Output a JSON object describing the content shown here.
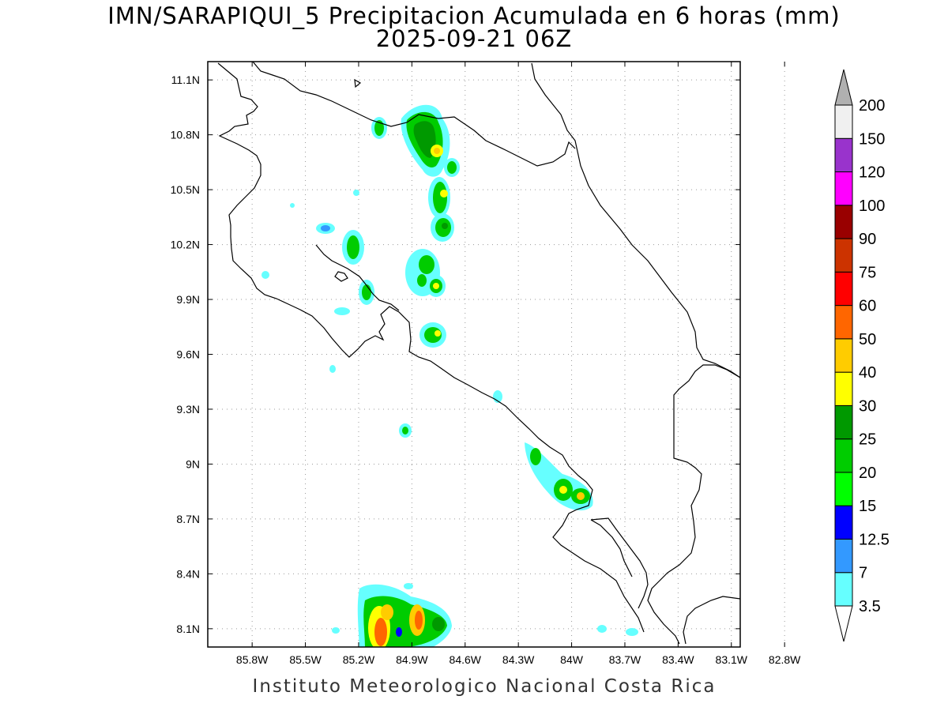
{
  "title": {
    "line1": "IMN/SARAPIQUI_5 Precipitacion Acumulada en 6 horas (mm)",
    "line2": "2025-09-21 06Z"
  },
  "footer": "Instituto Meteorologico Nacional Costa Rica",
  "map": {
    "lon_range": [
      -86.05,
      -83.05
    ],
    "lat_range": [
      8.0,
      11.2
    ],
    "x_ticks": [
      {
        "value": -85.8,
        "label": "85.8W"
      },
      {
        "value": -85.5,
        "label": "85.5W"
      },
      {
        "value": -85.2,
        "label": "85.2W"
      },
      {
        "value": -84.9,
        "label": "84.9W"
      },
      {
        "value": -84.6,
        "label": "84.6W"
      },
      {
        "value": -84.3,
        "label": "84.3W"
      },
      {
        "value": -84.0,
        "label": "84W"
      },
      {
        "value": -83.7,
        "label": "83.7W"
      },
      {
        "value": -83.4,
        "label": "83.4W"
      },
      {
        "value": -83.1,
        "label": "83.1W"
      },
      {
        "value": -82.8,
        "label": "82.8W"
      }
    ],
    "y_ticks": [
      {
        "value": 8.1,
        "label": "8.1N"
      },
      {
        "value": 8.4,
        "label": "8.4N"
      },
      {
        "value": 8.7,
        "label": "8.7N"
      },
      {
        "value": 9.0,
        "label": "9N"
      },
      {
        "value": 9.3,
        "label": "9.3N"
      },
      {
        "value": 9.6,
        "label": "9.6N"
      },
      {
        "value": 9.9,
        "label": "9.9N"
      },
      {
        "value": 10.2,
        "label": "10.2N"
      },
      {
        "value": 10.5,
        "label": "10.5N"
      },
      {
        "value": 10.8,
        "label": "10.8N"
      },
      {
        "value": 11.1,
        "label": "11.1N"
      }
    ],
    "grid": "dotted"
  },
  "colorbar": {
    "levels": [
      "3.5",
      "7",
      "12.5",
      "15",
      "20",
      "25",
      "30",
      "40",
      "50",
      "60",
      "75",
      "90",
      "100",
      "120",
      "150",
      "200"
    ],
    "colors": [
      "#66ffff",
      "#3399ff",
      "#0000ff",
      "#00ff00",
      "#00cc00",
      "#009900",
      "#ffff00",
      "#ffcc00",
      "#ff6600",
      "#ff0000",
      "#cc3300",
      "#990000",
      "#ff00ff",
      "#9933cc",
      "#f0f0f0"
    ],
    "over_color": "#b0b0b0",
    "under_color": "#ffffff"
  }
}
